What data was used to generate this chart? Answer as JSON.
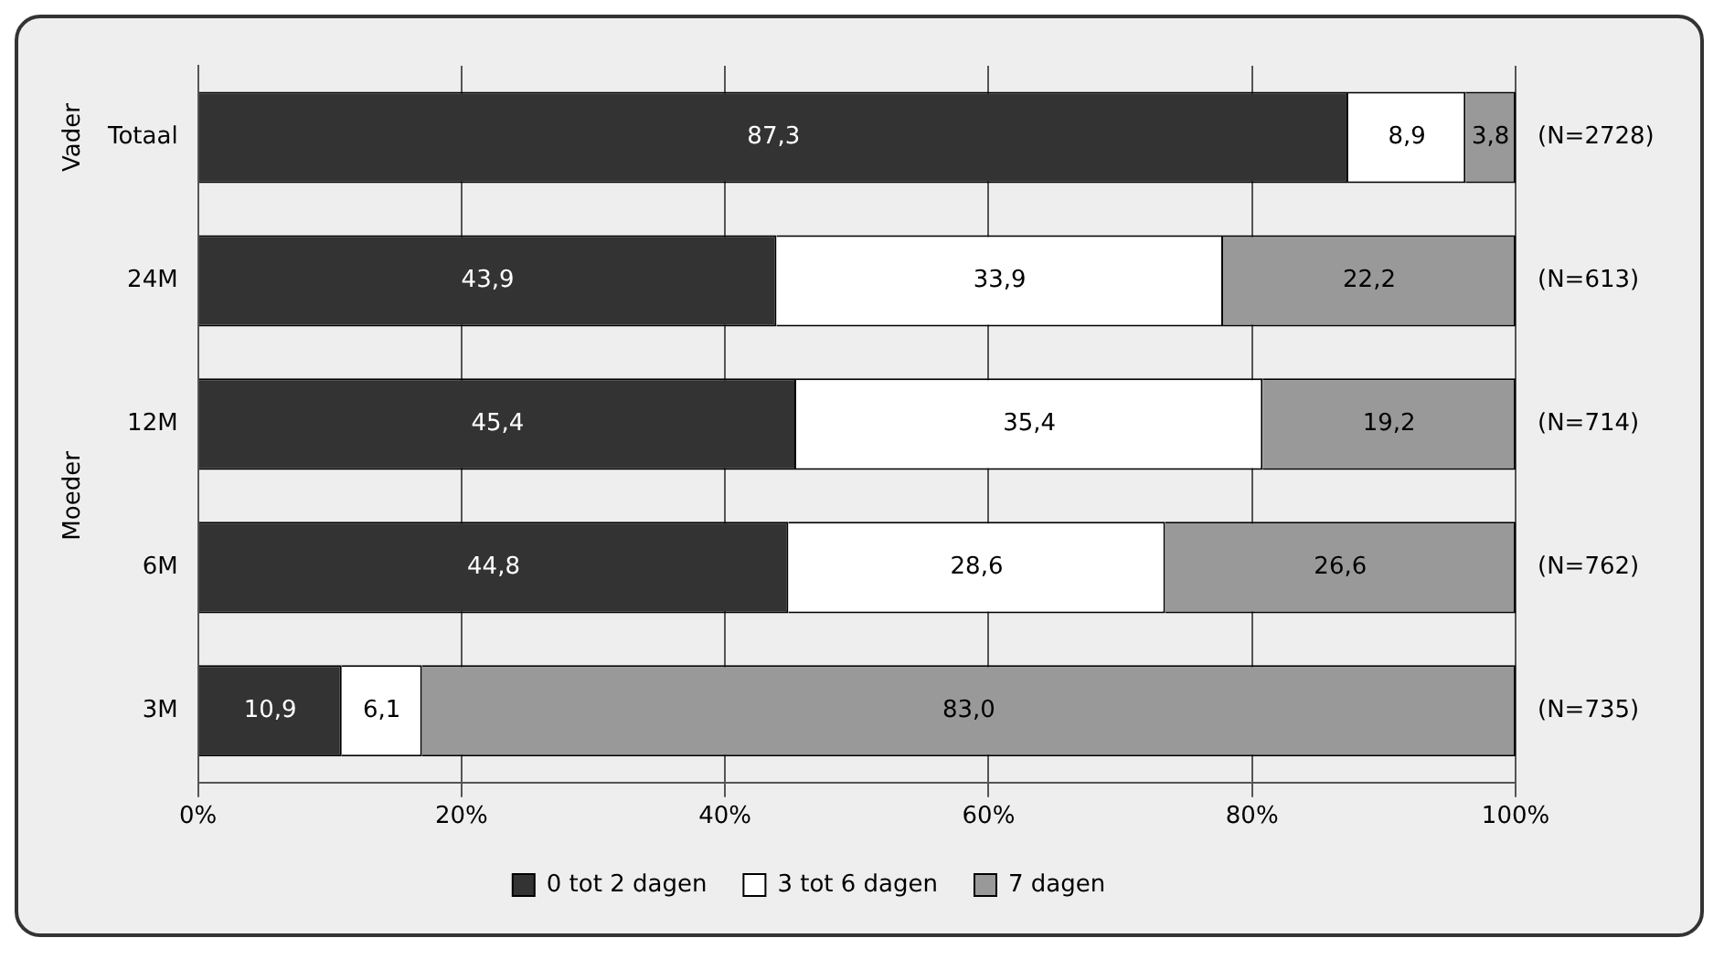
{
  "chart_data": {
    "type": "bar",
    "orientation": "horizontal",
    "stacked": true,
    "categories": [
      "Totaal",
      "24M",
      "12M",
      "6M",
      "3M"
    ],
    "series": [
      {
        "name": "0 tot 2 dagen",
        "color": "#333333",
        "values": [
          87.3,
          43.9,
          45.4,
          44.8,
          10.9
        ],
        "value_labels": [
          "87,3",
          "43,9",
          "45,4",
          "44,8",
          "10,9"
        ]
      },
      {
        "name": "3 tot 6 dagen",
        "color": "#ffffff",
        "values": [
          8.9,
          33.9,
          35.4,
          28.6,
          6.1
        ],
        "value_labels": [
          "8,9",
          "33,9",
          "35,4",
          "28,6",
          "6,1"
        ]
      },
      {
        "name": "7 dagen",
        "color": "#999999",
        "values": [
          3.8,
          22.2,
          19.2,
          26.6,
          83.0
        ],
        "value_labels": [
          "3,8",
          "22,2",
          "19,2",
          "26,6",
          "83,0"
        ]
      }
    ],
    "xlim": [
      0,
      100
    ],
    "xticks": [
      {
        "value": 0,
        "label": "0%"
      },
      {
        "value": 20,
        "label": "20%"
      },
      {
        "value": 40,
        "label": "40%"
      },
      {
        "value": 60,
        "label": "60%"
      },
      {
        "value": 80,
        "label": "80%"
      },
      {
        "value": 100,
        "label": "100%"
      }
    ],
    "grid": "x",
    "legend": "bottom",
    "annotations": [
      "(N=2728)",
      "(N=613)",
      "(N=714)",
      "(N=762)",
      "(N=735)",
      "Vader",
      "Moeder"
    ]
  }
}
